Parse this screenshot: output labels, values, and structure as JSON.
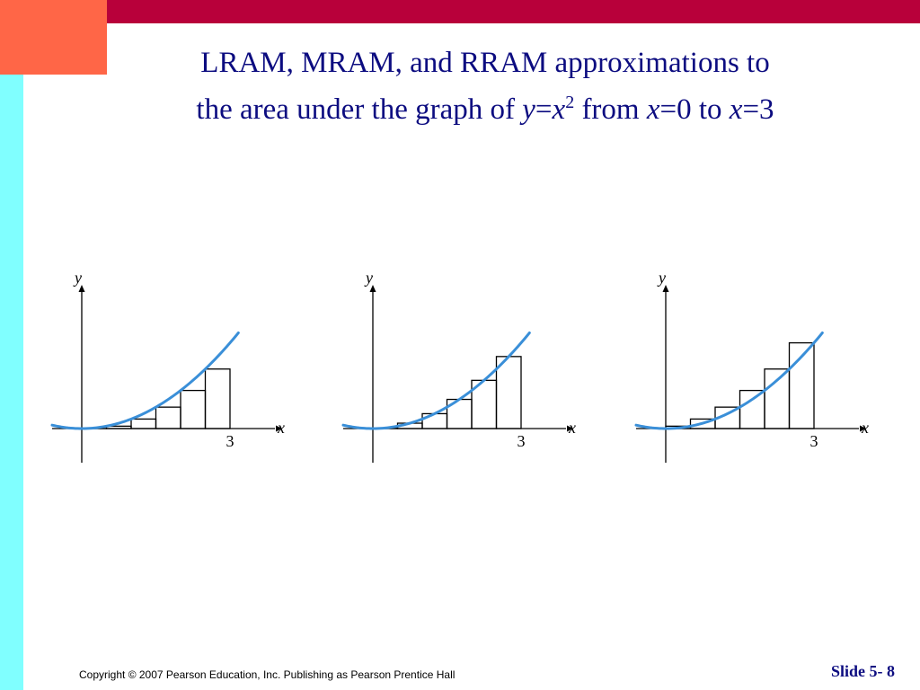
{
  "title": {
    "line1": "LRAM, MRAM, and RRAM approximations to",
    "line2_prefix": "the area under the graph of ",
    "y_var": "y",
    "eq1": "=",
    "x_var": "x",
    "exponent": "2",
    "from_text": " from ",
    "x_var2": "x",
    "eq_start": "=0 to ",
    "x_var3": "x",
    "eq_end": "=3"
  },
  "graphs": [
    {
      "name": "LRAM",
      "x_label": "x",
      "y_label": "y",
      "tick_label": "3",
      "method": "left"
    },
    {
      "name": "MRAM",
      "x_label": "x",
      "y_label": "y",
      "tick_label": "3",
      "method": "mid"
    },
    {
      "name": "RRAM",
      "x_label": "x",
      "y_label": "y",
      "tick_label": "3",
      "method": "right"
    }
  ],
  "curve_color": "#3a8fd8",
  "footer": {
    "copyright": "Copyright © 2007 Pearson Education, Inc. Publishing as Pearson Prentice Hall",
    "slide": "Slide 5- 8"
  }
}
